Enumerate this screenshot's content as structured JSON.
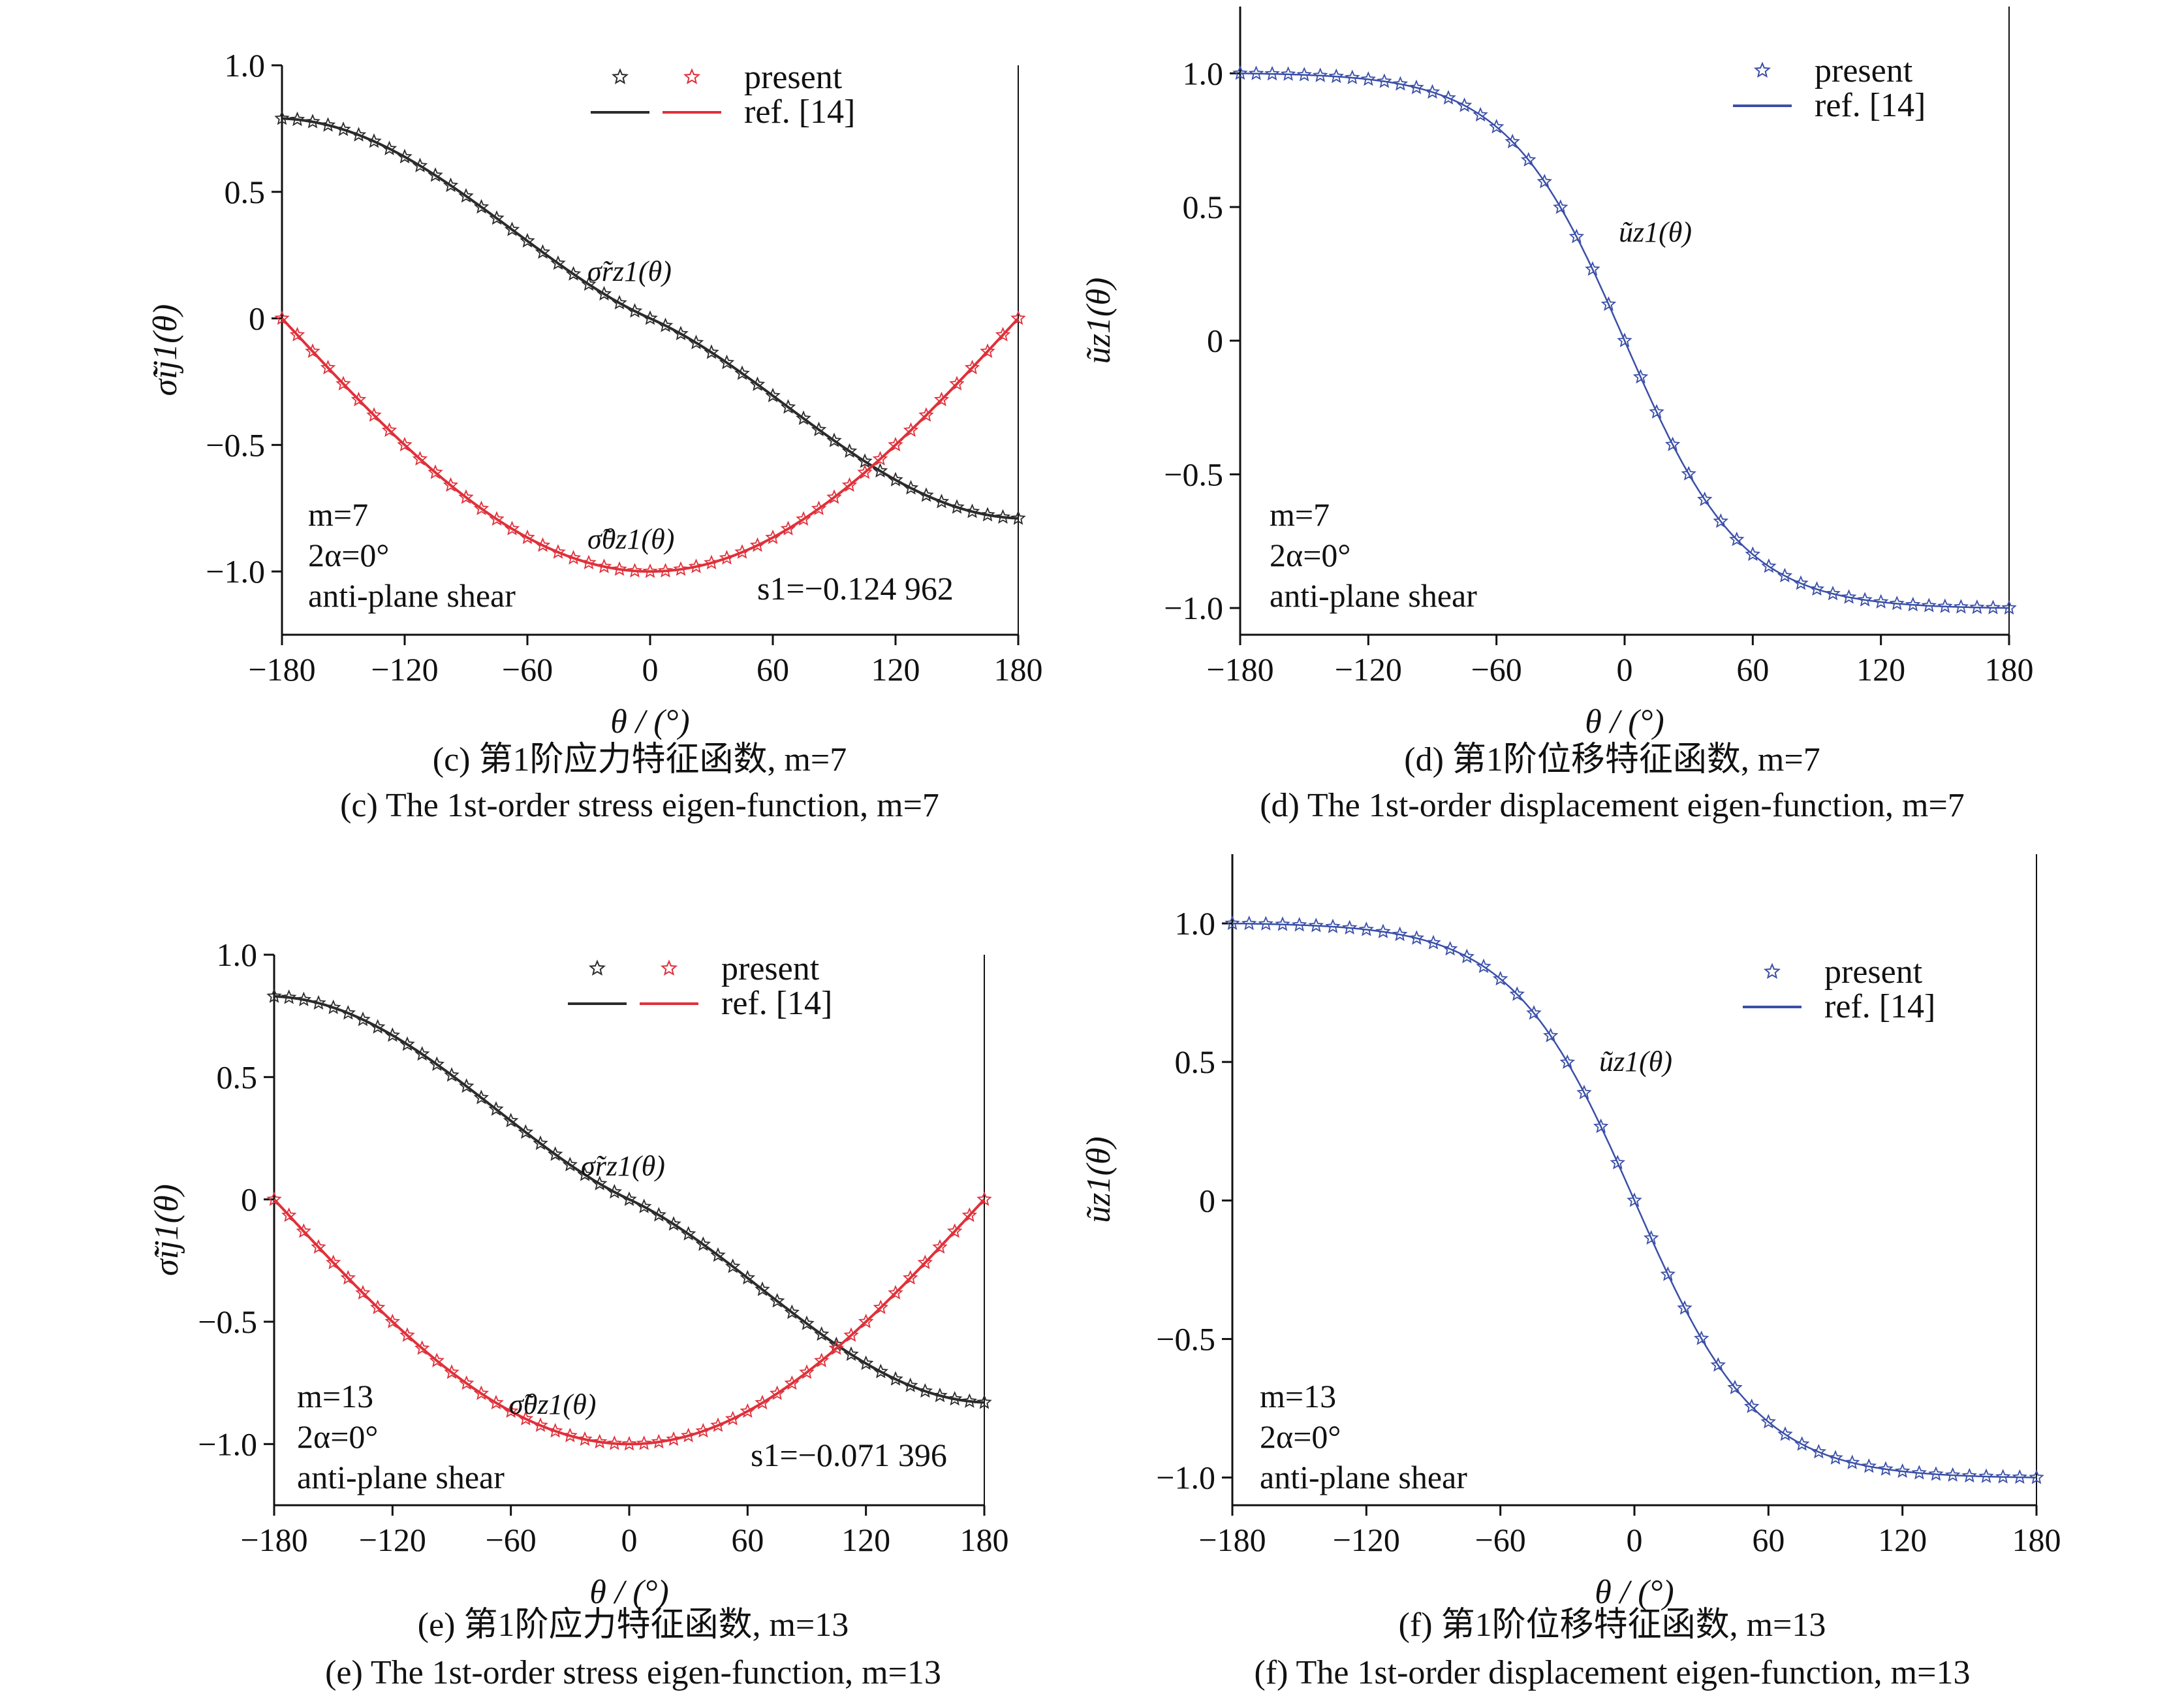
{
  "chart_data": [
    {
      "panel": "c",
      "type": "line",
      "ylabel": "σ̃ij1(θ)",
      "xlabel": "θ / (°)",
      "xlim": [
        -180,
        180
      ],
      "ylim": [
        -1.25,
        1.0
      ],
      "xticks": [
        "−180",
        "−120",
        "−60",
        "0",
        "60",
        "120",
        "180"
      ],
      "yticks": [
        "1.0",
        "0.5",
        "0",
        "−0.5",
        "−1.0"
      ],
      "legend": {
        "position": "top-right",
        "entries": [
          "present",
          "ref. [14]"
        ]
      },
      "info": [
        "m=7",
        "2α=0°",
        "anti-plane shear"
      ],
      "s_value": "s1=−0.124 962",
      "curve_labels": [
        "σ̃rz1(θ)",
        "σ̃θz1(θ)"
      ],
      "series": [
        {
          "name": "σ̃rz1(θ)",
          "color": "#2b2b2b",
          "shape": "sigma_rz",
          "amplitude": 0.79
        },
        {
          "name": "σ̃θz1(θ)",
          "color": "#e0303a",
          "shape": "sigma_tz",
          "amplitude": 1.0
        }
      ],
      "caption_cn": "(c) 第1阶应力特征函数, m=7",
      "caption_en": "(c) The 1st-order stress eigen-function, m=7"
    },
    {
      "panel": "d",
      "type": "line",
      "ylabel": "ũz1(θ)",
      "xlabel": "θ / (°)",
      "xlim": [
        -180,
        180
      ],
      "ylim": [
        -1.1,
        1.25
      ],
      "xticks": [
        "−180",
        "−120",
        "−60",
        "0",
        "60",
        "120",
        "180"
      ],
      "yticks": [
        "1.0",
        "0.5",
        "0",
        "−0.5",
        "−1.0"
      ],
      "legend": {
        "position": "top-right",
        "entries": [
          "present",
          "ref. [14]"
        ]
      },
      "info": [
        "m=7",
        "2α=0°",
        "anti-plane shear"
      ],
      "curve_labels": [
        "ũz1(θ)"
      ],
      "series": [
        {
          "name": "ũz1(θ)",
          "color": "#3a4fa8",
          "shape": "displacement",
          "amplitude": 1.0
        }
      ],
      "caption_cn": "(d) 第1阶位移特征函数, m=7",
      "caption_en": "(d) The 1st-order displacement eigen-function, m=7"
    },
    {
      "panel": "e",
      "type": "line",
      "ylabel": "σ̃ij1(θ)",
      "xlabel": "θ / (°)",
      "xlim": [
        -180,
        180
      ],
      "ylim": [
        -1.25,
        1.0
      ],
      "xticks": [
        "−180",
        "−120",
        "−60",
        "0",
        "60",
        "120",
        "180"
      ],
      "yticks": [
        "1.0",
        "0.5",
        "0",
        "−0.5",
        "−1.0"
      ],
      "legend": {
        "position": "top-right",
        "entries": [
          "present",
          "ref. [14]"
        ]
      },
      "info": [
        "m=13",
        "2α=0°",
        "anti-plane shear"
      ],
      "s_value": "s1=−0.071 396",
      "curve_labels": [
        "σ̃rz1(θ)",
        "σ̃θz1(θ)"
      ],
      "series": [
        {
          "name": "σ̃rz1(θ)",
          "color": "#2b2b2b",
          "shape": "sigma_rz",
          "amplitude": 0.83
        },
        {
          "name": "σ̃θz1(θ)",
          "color": "#e0303a",
          "shape": "sigma_tz",
          "amplitude": 1.0
        }
      ],
      "caption_cn": "(e) 第1阶应力特征函数, m=13",
      "caption_en": "(e) The 1st-order stress eigen-function, m=13"
    },
    {
      "panel": "f",
      "type": "line",
      "ylabel": "ũz1(θ)",
      "xlabel": "θ / (°)",
      "xlim": [
        -180,
        180
      ],
      "ylim": [
        -1.1,
        1.25
      ],
      "xticks": [
        "−180",
        "−120",
        "−60",
        "0",
        "60",
        "120",
        "180"
      ],
      "yticks": [
        "1.0",
        "0.5",
        "0",
        "−0.5",
        "−1.0"
      ],
      "legend": {
        "position": "top-right",
        "entries": [
          "present",
          "ref. [14]"
        ]
      },
      "info": [
        "m=13",
        "2α=0°",
        "anti-plane shear"
      ],
      "curve_labels": [
        "ũz1(θ)"
      ],
      "series": [
        {
          "name": "ũz1(θ)",
          "color": "#3a4fa8",
          "shape": "displacement",
          "amplitude": 1.0
        }
      ],
      "caption_cn": "(f) 第1阶位移特征函数, m=13",
      "caption_en": "(f) The 1st-order displacement eigen-function, m=13"
    }
  ]
}
